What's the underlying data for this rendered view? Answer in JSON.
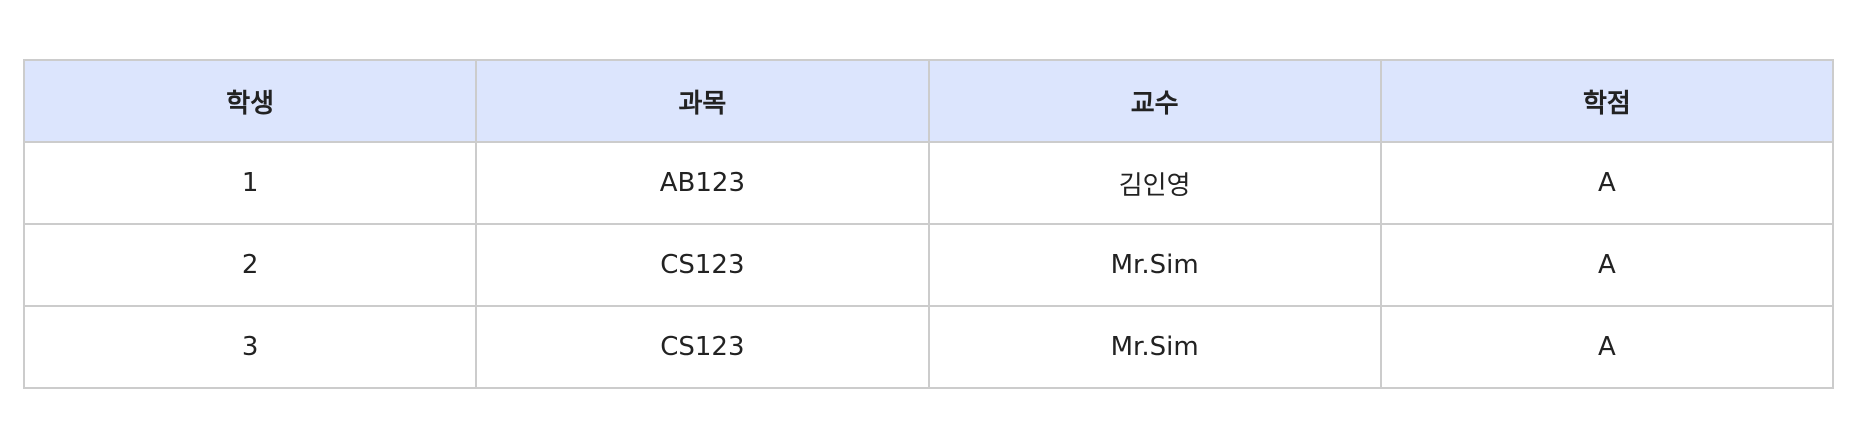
{
  "table": {
    "headers": [
      "학생",
      "과목",
      "교수",
      "학점"
    ],
    "rows": [
      [
        "1",
        "AB123",
        "김인영",
        "A"
      ],
      [
        "2",
        "CS123",
        "Mr.Sim",
        "A"
      ],
      [
        "3",
        "CS123",
        "Mr.Sim",
        "A"
      ]
    ]
  },
  "colors": {
    "header_background": "#dce5fd",
    "border": "#cccccc",
    "text": "#222222"
  }
}
